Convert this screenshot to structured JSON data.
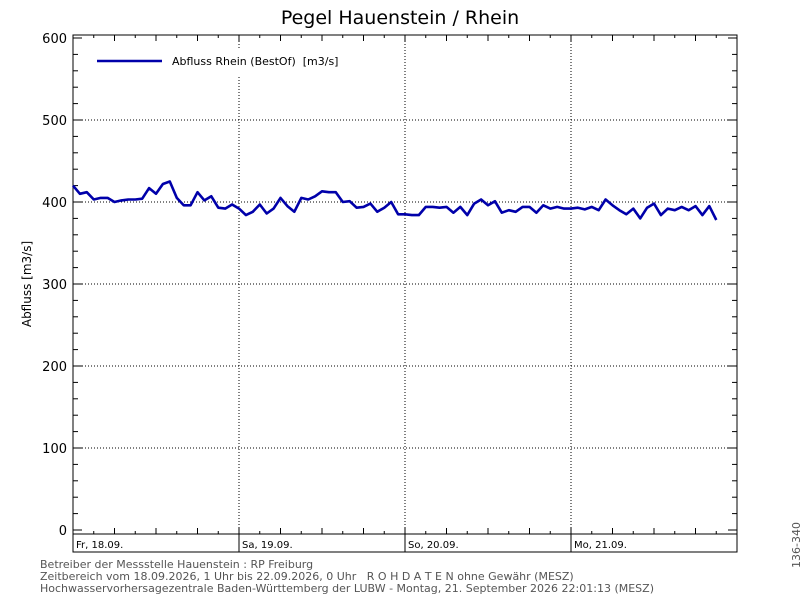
{
  "chart_data": {
    "type": "line",
    "title": "Pegel Hauenstein / Rhein",
    "ylabel": "Abfluss [m3/s]",
    "ylim": [
      0,
      600
    ],
    "yticks": [
      0,
      100,
      200,
      300,
      400,
      500,
      600
    ],
    "grid": true,
    "legend_position": "top-left",
    "day_labels": [
      "Fr, 18.09.",
      "Sa, 19.09.",
      "So, 20.09.",
      "Mo, 21.09."
    ],
    "series": [
      {
        "name": "Abfluss Rhein (BestOf)  [m3/s]",
        "color": "#0000aa",
        "x_hours": [
          0,
          1,
          2,
          3,
          4,
          5,
          6,
          7,
          8,
          9,
          10,
          11,
          12,
          13,
          14,
          15,
          16,
          17,
          18,
          19,
          20,
          21,
          22,
          23,
          24,
          25,
          26,
          27,
          28,
          29,
          30,
          31,
          32,
          33,
          34,
          35,
          36,
          37,
          38,
          39,
          40,
          41,
          42,
          43,
          44,
          45,
          46,
          47,
          48,
          49,
          50,
          51,
          52,
          53,
          54,
          55,
          56,
          57,
          58,
          59,
          60,
          61,
          62,
          63,
          64,
          65,
          66,
          67,
          68,
          69,
          70,
          71,
          72,
          73,
          74,
          75,
          76,
          77,
          78,
          79,
          80,
          81,
          82,
          83,
          84,
          85,
          86,
          87,
          88,
          89,
          90,
          91,
          92,
          93
        ],
        "values": [
          420,
          410,
          412,
          403,
          405,
          405,
          400,
          402,
          403,
          403,
          404,
          417,
          410,
          422,
          425,
          405,
          396,
          396,
          412,
          402,
          407,
          393,
          392,
          397,
          392,
          384,
          388,
          397,
          386,
          392,
          405,
          395,
          388,
          405,
          403,
          407,
          413,
          412,
          412,
          400,
          401,
          393,
          394,
          398,
          388,
          393,
          400,
          385,
          385,
          384,
          384,
          394,
          394,
          393,
          394,
          387,
          394,
          384,
          398,
          403,
          396,
          401,
          387,
          390,
          388,
          394,
          394,
          387,
          396,
          392,
          394,
          392,
          392,
          393,
          391,
          394,
          390,
          403,
          396,
          390,
          385,
          392,
          380,
          393,
          398,
          384,
          392,
          390,
          394,
          390,
          395,
          384,
          395,
          378
        ]
      }
    ]
  },
  "footer": {
    "line1": "Betreiber der Messstelle Hauenstein : RP Freiburg",
    "line2": "Zeitbereich vom 18.09.2026, 1 Uhr bis 22.09.2026, 0 Uhr   R O H D A T E N ohne Gewähr (MESZ)",
    "line3": "Hochwasservorhersagezentrale Baden-Württemberg der LUBW - Montag, 21. September 2026 22:01:13 (MESZ)"
  },
  "side_code": "136-340"
}
